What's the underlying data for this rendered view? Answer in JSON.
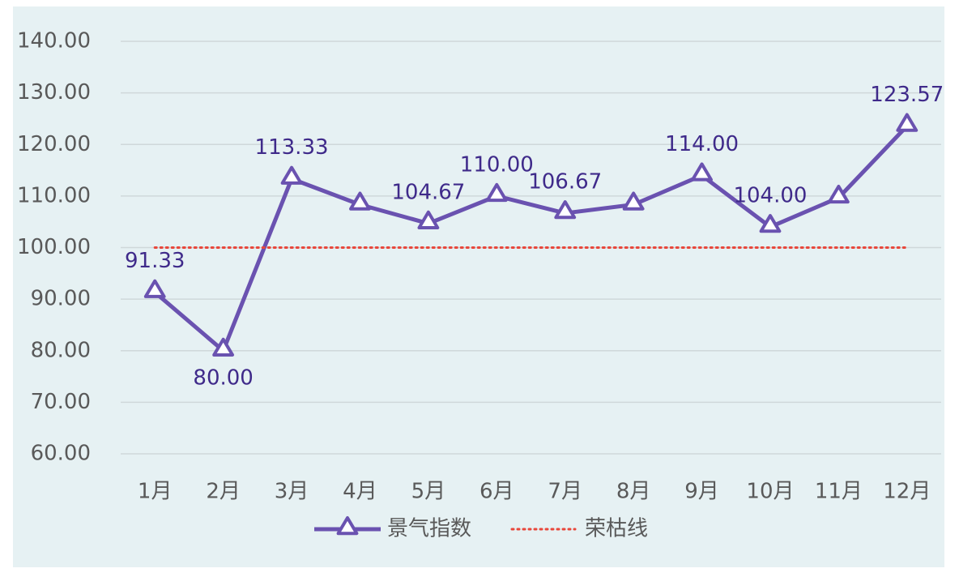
{
  "chart_data": {
    "type": "line",
    "categories": [
      "1月",
      "2月",
      "3月",
      "4月",
      "5月",
      "6月",
      "7月",
      "8月",
      "9月",
      "10月",
      "11月",
      "12月"
    ],
    "series": [
      {
        "name": "景气指数",
        "color": "#6a52b0",
        "marker": "triangle",
        "values": [
          91.33,
          80.0,
          113.33,
          108.33,
          104.67,
          110.0,
          106.67,
          108.33,
          114.0,
          104.0,
          109.67,
          123.57
        ],
        "value_labels": [
          "91.33",
          "80.00",
          "113.33",
          null,
          "104.67",
          "110.00",
          "106.67",
          null,
          "114.00",
          "104.00",
          null,
          "123.57"
        ]
      },
      {
        "name": "荣枯线",
        "color": "#e8473b",
        "dash": "dotted",
        "values": [
          100,
          100,
          100,
          100,
          100,
          100,
          100,
          100,
          100,
          100,
          100,
          100
        ]
      }
    ],
    "ylim": [
      60,
      140
    ],
    "yticks": [
      {
        "value": 60,
        "label": "60.00"
      },
      {
        "value": 70,
        "label": "70.00"
      },
      {
        "value": 80,
        "label": "80.00"
      },
      {
        "value": 90,
        "label": "90.00"
      },
      {
        "value": 100,
        "label": "100.00"
      },
      {
        "value": 110,
        "label": "110.00"
      },
      {
        "value": 120,
        "label": "120.00"
      },
      {
        "value": 130,
        "label": "130.00"
      },
      {
        "value": 140,
        "label": "140.00"
      }
    ],
    "grid": true,
    "legend": "bottom"
  }
}
